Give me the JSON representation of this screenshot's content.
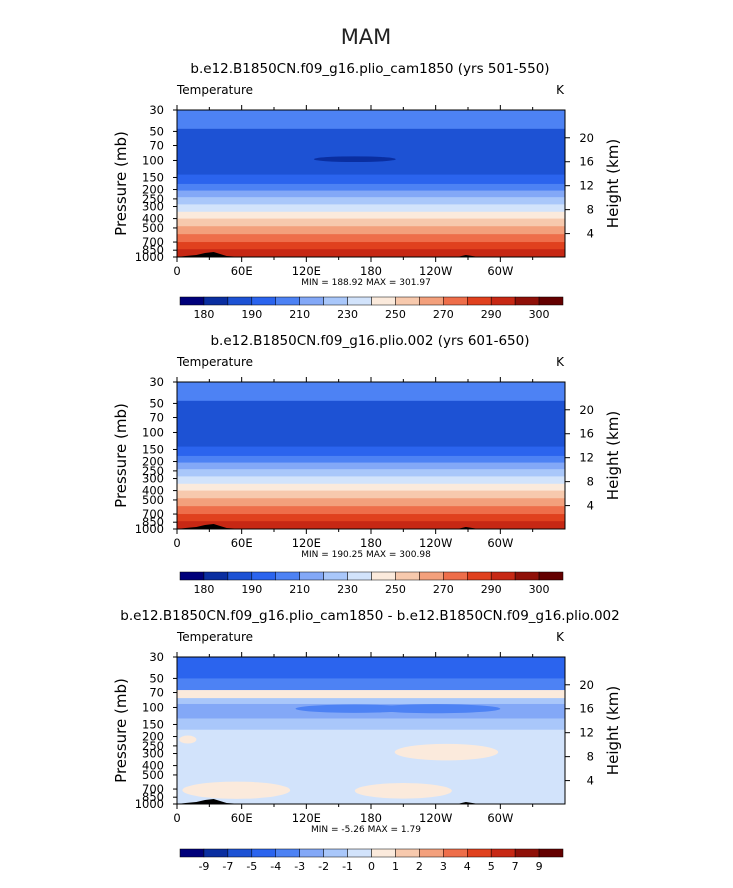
{
  "figure": {
    "season": "MAM"
  },
  "colors": {
    "abs_levels": [
      "#00007a",
      "#0a2ea0",
      "#1d52d4",
      "#2b64ee",
      "#4d82f4",
      "#83a8f7",
      "#a9c7fa",
      "#d2e3fb",
      "#fbeadc",
      "#f7c9ad",
      "#f3a07c",
      "#ee6e4a",
      "#e0411e",
      "#c72814",
      "#8f1008",
      "#640000"
    ],
    "diff_levels": [
      "#00007a",
      "#0a2ea0",
      "#1d52d4",
      "#2b64ee",
      "#4d82f4",
      "#83a8f7",
      "#a9c7fa",
      "#d2e3fb",
      "#fbeadc",
      "#f7c9ad",
      "#f3a07c",
      "#ee6e4a",
      "#e0411e",
      "#c72814",
      "#8f1008",
      "#640000"
    ],
    "topography": "#000000"
  },
  "chart_data": [
    {
      "type": "heatmap",
      "title": "b.e12.B1850CN.f09_g16.plio_cam1850 (yrs 501-550)",
      "left_label": "Temperature",
      "unit": "K",
      "ylabel": "Pressure  (mb)",
      "ylabel_right": "Height  (km)",
      "x_ticks": [
        "0",
        "60E",
        "120E",
        "180",
        "120W",
        "60W"
      ],
      "y_ticks": [
        "30",
        "50",
        "70",
        "100",
        "150",
        "200",
        "250",
        "300",
        "400",
        "500",
        "700",
        "850",
        "1000"
      ],
      "y_right_ticks": [
        "20",
        "16",
        "12",
        "8",
        "4"
      ],
      "stats": "MIN = 188.92   MAX = 301.97",
      "colorbar_labels": [
        "180",
        "190",
        "210",
        "230",
        "250",
        "270",
        "290",
        "300"
      ],
      "bands": [
        {
          "p_top": 30,
          "p_bot": 47,
          "level": 4
        },
        {
          "p_top": 47,
          "p_bot": 140,
          "level": 2
        },
        {
          "p_top": 140,
          "p_bot": 175,
          "level": 3
        },
        {
          "p_top": 175,
          "p_bot": 205,
          "level": 4
        },
        {
          "p_top": 205,
          "p_bot": 240,
          "level": 5
        },
        {
          "p_top": 240,
          "p_bot": 285,
          "level": 6
        },
        {
          "p_top": 285,
          "p_bot": 340,
          "level": 7
        },
        {
          "p_top": 340,
          "p_bot": 400,
          "level": 8
        },
        {
          "p_top": 400,
          "p_bot": 480,
          "level": 9
        },
        {
          "p_top": 480,
          "p_bot": 580,
          "level": 10
        },
        {
          "p_top": 580,
          "p_bot": 700,
          "level": 11
        },
        {
          "p_top": 700,
          "p_bot": 830,
          "level": 12
        },
        {
          "p_top": 830,
          "p_bot": 1000,
          "level": 13
        }
      ],
      "blobs": [
        {
          "lon": 165,
          "p": 97,
          "half_width_deg": 38,
          "level": 1
        }
      ]
    },
    {
      "type": "heatmap",
      "title": "b.e12.B1850CN.f09_g16.plio.002 (yrs 601-650)",
      "left_label": "Temperature",
      "unit": "K",
      "ylabel": "Pressure  (mb)",
      "ylabel_right": "Height  (km)",
      "x_ticks": [
        "0",
        "60E",
        "120E",
        "180",
        "120W",
        "60W"
      ],
      "y_ticks": [
        "30",
        "50",
        "70",
        "100",
        "150",
        "200",
        "250",
        "300",
        "400",
        "500",
        "700",
        "850",
        "1000"
      ],
      "y_right_ticks": [
        "20",
        "16",
        "12",
        "8",
        "4"
      ],
      "stats": "MIN = 190.25   MAX = 300.98",
      "colorbar_labels": [
        "180",
        "190",
        "210",
        "230",
        "250",
        "270",
        "290",
        "300"
      ],
      "bands": [
        {
          "p_top": 30,
          "p_bot": 47,
          "level": 4
        },
        {
          "p_top": 47,
          "p_bot": 140,
          "level": 2
        },
        {
          "p_top": 140,
          "p_bot": 175,
          "level": 3
        },
        {
          "p_top": 175,
          "p_bot": 205,
          "level": 4
        },
        {
          "p_top": 205,
          "p_bot": 240,
          "level": 5
        },
        {
          "p_top": 240,
          "p_bot": 285,
          "level": 6
        },
        {
          "p_top": 285,
          "p_bot": 340,
          "level": 7
        },
        {
          "p_top": 340,
          "p_bot": 400,
          "level": 8
        },
        {
          "p_top": 400,
          "p_bot": 480,
          "level": 9
        },
        {
          "p_top": 480,
          "p_bot": 580,
          "level": 10
        },
        {
          "p_top": 580,
          "p_bot": 700,
          "level": 11
        },
        {
          "p_top": 700,
          "p_bot": 830,
          "level": 12
        },
        {
          "p_top": 830,
          "p_bot": 1000,
          "level": 13
        }
      ],
      "blobs": []
    },
    {
      "type": "heatmap",
      "title": "b.e12.B1850CN.f09_g16.plio_cam1850 - b.e12.B1850CN.f09_g16.plio.002",
      "left_label": "Temperature",
      "unit": "K",
      "ylabel": "Pressure  (mb)",
      "ylabel_right": "Height  (km)",
      "x_ticks": [
        "0",
        "60E",
        "120E",
        "180",
        "120W",
        "60W"
      ],
      "y_ticks": [
        "30",
        "50",
        "70",
        "100",
        "150",
        "200",
        "250",
        "300",
        "400",
        "500",
        "700",
        "850",
        "1000"
      ],
      "y_right_ticks": [
        "20",
        "16",
        "12",
        "8",
        "4"
      ],
      "stats": "MIN =   -5.26   MAX =    1.79",
      "colorbar_labels": [
        "-9",
        "-7",
        "-5",
        "-4",
        "-3",
        "-2",
        "-1",
        "0",
        "1",
        "2",
        "3",
        "4",
        "5",
        "7",
        "9"
      ],
      "bands": [
        {
          "p_top": 30,
          "p_bot": 50,
          "level": 3
        },
        {
          "p_top": 50,
          "p_bot": 66,
          "level": 4
        },
        {
          "p_top": 66,
          "p_bot": 80,
          "level": 8
        },
        {
          "p_top": 80,
          "p_bot": 92,
          "level": 6
        },
        {
          "p_top": 92,
          "p_bot": 130,
          "level": 5
        },
        {
          "p_top": 130,
          "p_bot": 170,
          "level": 6
        },
        {
          "p_top": 170,
          "p_bot": 1000,
          "level": 7
        }
      ],
      "blobs": [
        {
          "lon": 165,
          "p": 103,
          "half_width_deg": 55,
          "level": 4
        },
        {
          "lon": 240,
          "p": 103,
          "half_width_deg": 60,
          "level": 4
        },
        {
          "lon": 250,
          "p": 290,
          "half_width_deg": 48,
          "level": 8
        },
        {
          "lon": 10,
          "p": 215,
          "half_width_deg": 8,
          "level": 8
        },
        {
          "lon": 55,
          "p": 720,
          "half_width_deg": 50,
          "level": 8
        },
        {
          "lon": 210,
          "p": 730,
          "half_width_deg": 45,
          "level": 8
        }
      ]
    }
  ]
}
